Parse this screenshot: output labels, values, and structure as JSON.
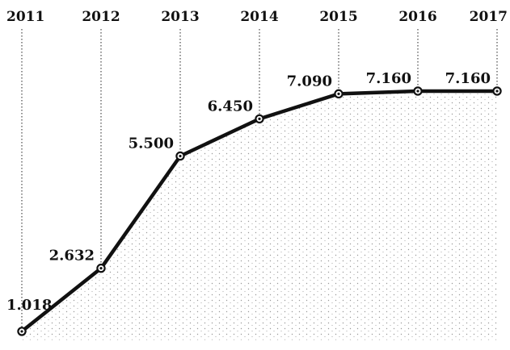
{
  "chart_data": {
    "type": "line",
    "title": "",
    "xlabel": "",
    "ylabel": "",
    "x": [
      "2011",
      "2012",
      "2013",
      "2014",
      "2015",
      "2016",
      "2017"
    ],
    "values": [
      1018,
      2632,
      5500,
      6450,
      7090,
      7160,
      7160
    ],
    "value_labels": [
      "1.018",
      "2.632",
      "5.500",
      "6.450",
      "7.090",
      "7.160",
      "7.160"
    ],
    "ylim": [
      800,
      8200
    ],
    "grid": false,
    "line_color": "#111111",
    "stipple_color": "#9a9a9a"
  }
}
